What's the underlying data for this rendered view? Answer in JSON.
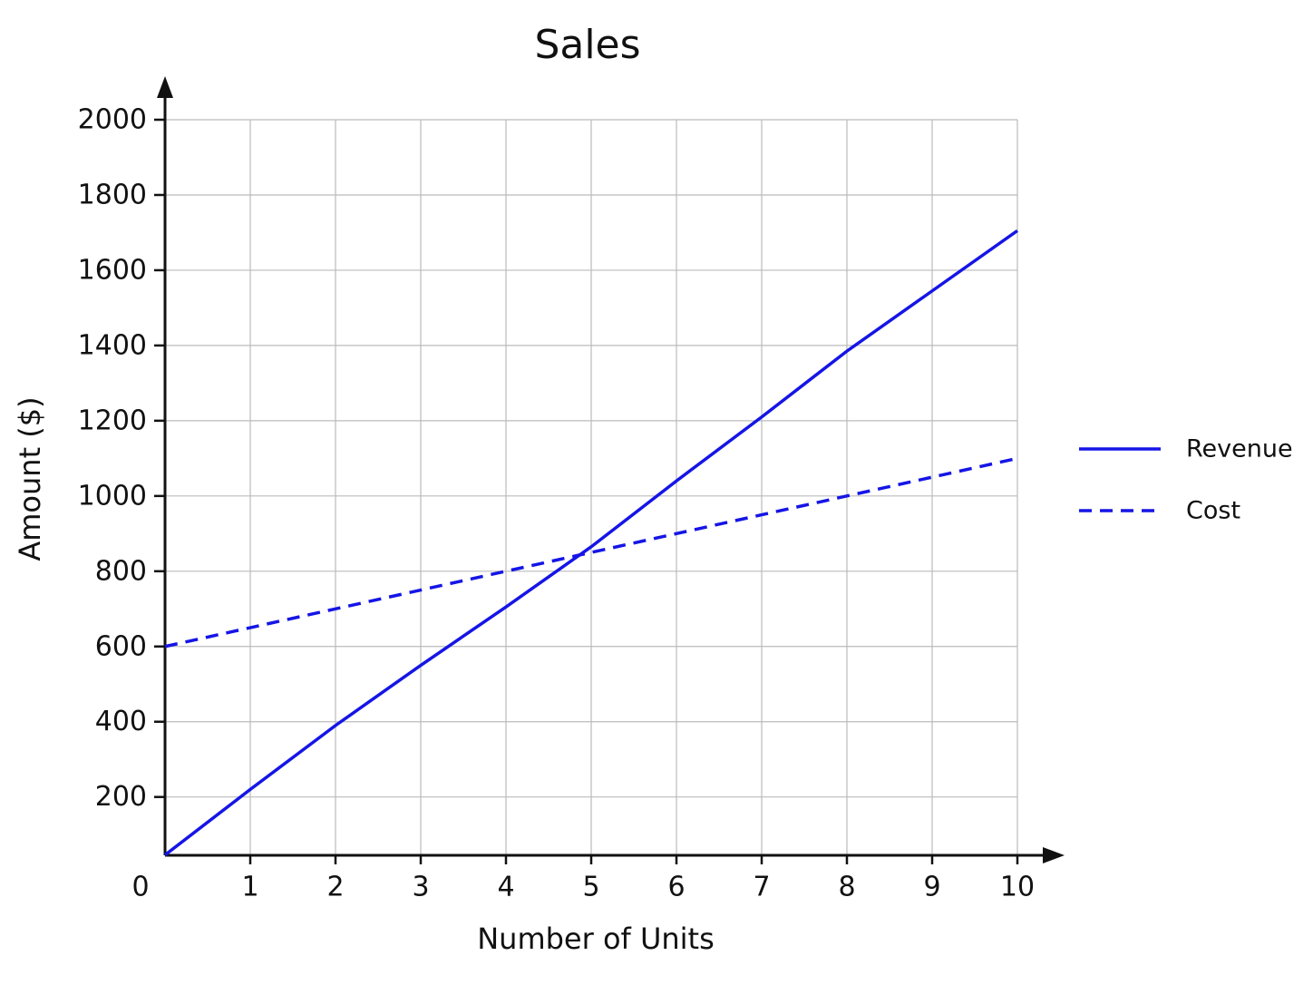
{
  "chart_data": {
    "type": "line",
    "title": "Sales",
    "xlabel": "Number of Units",
    "ylabel": "Amount ($)",
    "x": [
      0,
      1,
      2,
      3,
      4,
      5,
      6,
      7,
      8,
      9,
      10
    ],
    "series": [
      {
        "name": "Revenue",
        "color": "#1515e6",
        "dash": false,
        "values": [
          46,
          220,
          390,
          550,
          705,
          865,
          1040,
          1210,
          1385,
          1545,
          1705
        ]
      },
      {
        "name": "Cost",
        "color": "#1515e6",
        "dash": true,
        "values": [
          600,
          650,
          700,
          750,
          800,
          850,
          900,
          950,
          1000,
          1050,
          1100
        ]
      }
    ],
    "xlim": [
      0,
      10
    ],
    "xticks": [
      0,
      1,
      2,
      3,
      4,
      5,
      6,
      7,
      8,
      9,
      10
    ],
    "ylim": [
      45,
      2000
    ],
    "yticks": [
      200,
      400,
      600,
      800,
      1000,
      1200,
      1400,
      1600,
      1800,
      2000
    ],
    "grid": true,
    "legend": "right"
  }
}
